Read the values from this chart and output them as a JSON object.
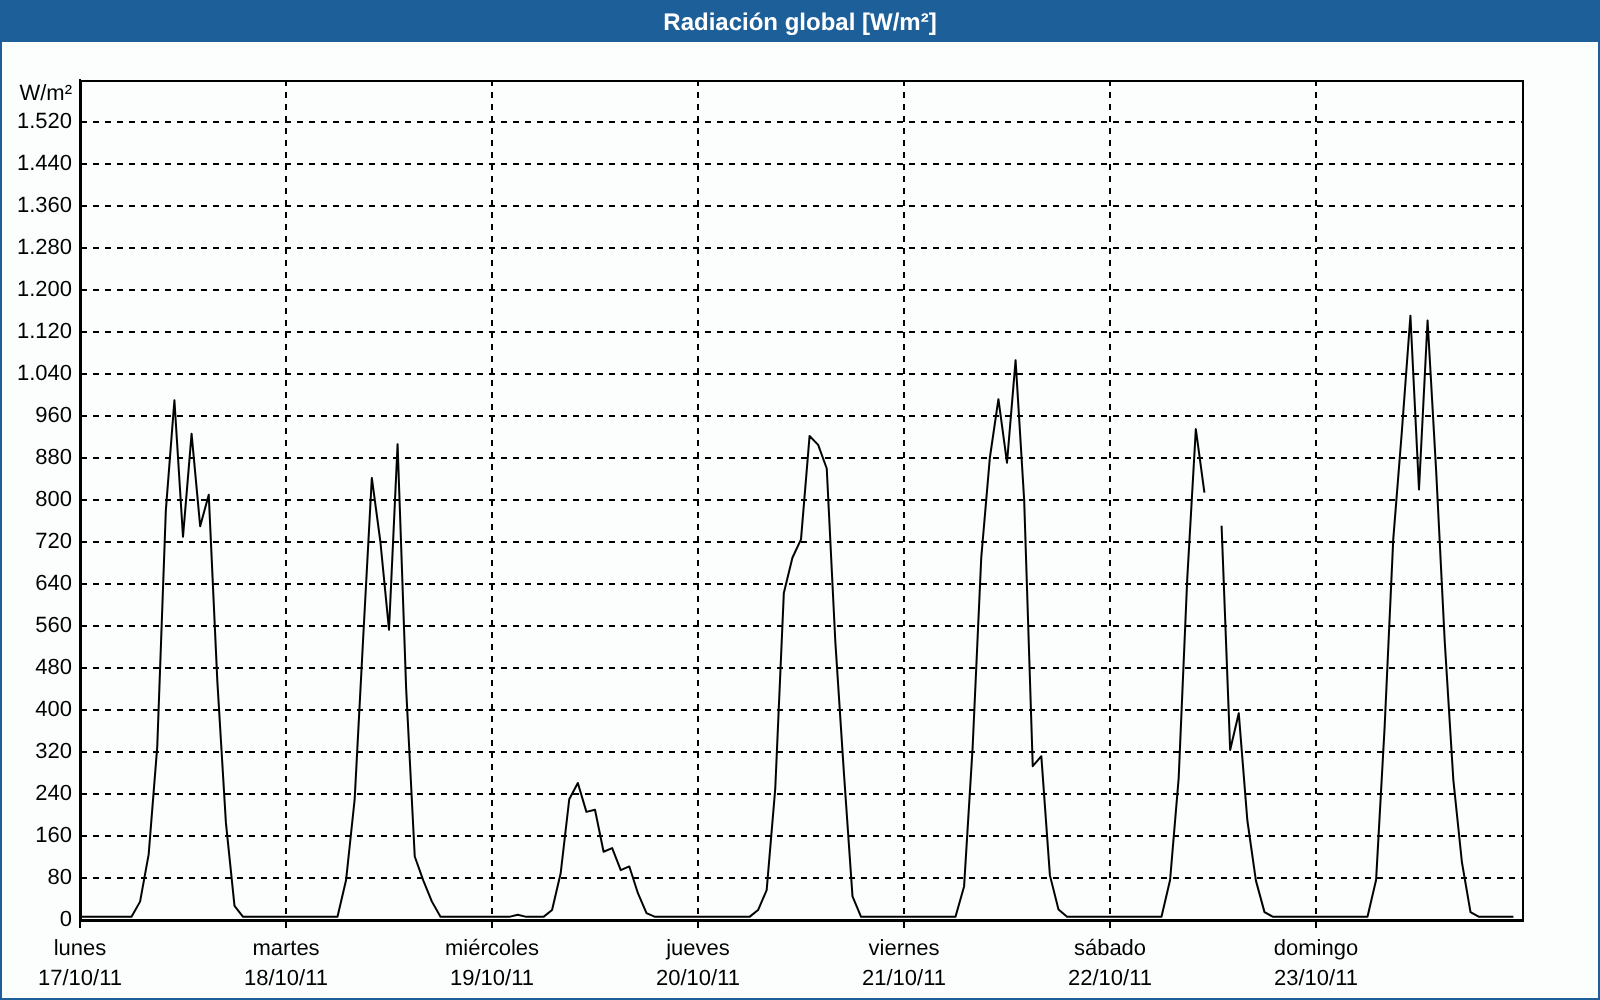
{
  "chart_data": {
    "type": "line",
    "title": "Radiación global [W/m²]",
    "ylabel": "W/m²",
    "categories": [
      "lunes\n17/10/11",
      null,
      null,
      null,
      null,
      null,
      null,
      null,
      null,
      null,
      null,
      null,
      null,
      null,
      null,
      null,
      null,
      null,
      null,
      null,
      null,
      null,
      null,
      null,
      "martes\n18/10/11",
      null,
      null,
      null,
      null,
      null,
      null,
      null,
      null,
      null,
      null,
      null,
      null,
      null,
      null,
      null,
      null,
      null,
      null,
      null,
      null,
      null,
      null,
      null,
      "miércoles\n19/10/11",
      null,
      null,
      null,
      null,
      null,
      null,
      null,
      null,
      null,
      null,
      null,
      null,
      null,
      null,
      null,
      null,
      null,
      null,
      null,
      null,
      null,
      null,
      null,
      "jueves\n20/10/11",
      null,
      null,
      null,
      null,
      null,
      null,
      null,
      null,
      null,
      null,
      null,
      null,
      null,
      null,
      null,
      null,
      null,
      null,
      null,
      null,
      null,
      null,
      null,
      "viernes\n21/10/11",
      null,
      null,
      null,
      null,
      null,
      null,
      null,
      null,
      null,
      null,
      null,
      null,
      null,
      null,
      null,
      null,
      null,
      null,
      null,
      null,
      null,
      null,
      null,
      "sábado\n22/10/11",
      null,
      null,
      null,
      null,
      null,
      null,
      null,
      null,
      null,
      null,
      null,
      null,
      null,
      null,
      null,
      null,
      null,
      null,
      null,
      null,
      null,
      null,
      null,
      "domingo\n23/10/11",
      null,
      null,
      null,
      null,
      null,
      null,
      null,
      null,
      null,
      null,
      null,
      null,
      null,
      null,
      null,
      null,
      null,
      null,
      null,
      null,
      null,
      null,
      null,
      null
    ],
    "values": [
      6,
      6,
      6,
      6,
      6,
      6,
      6,
      35,
      125,
      330,
      780,
      990,
      730,
      926,
      750,
      810,
      455,
      185,
      27,
      6,
      6,
      6,
      6,
      6,
      6,
      6,
      6,
      6,
      6,
      6,
      6,
      76,
      230,
      540,
      842,
      720,
      553,
      906,
      440,
      121,
      75,
      35,
      6,
      6,
      6,
      6,
      6,
      6,
      6,
      6,
      6,
      10,
      6,
      6,
      6,
      19,
      89,
      230,
      261,
      206,
      210,
      130,
      137,
      95,
      102,
      51,
      13,
      6,
      6,
      6,
      6,
      6,
      6,
      6,
      6,
      6,
      6,
      6,
      6,
      19,
      57,
      250,
      623,
      690,
      725,
      922,
      905,
      860,
      530,
      280,
      45,
      6,
      6,
      6,
      6,
      6,
      6,
      6,
      6,
      6,
      6,
      6,
      6,
      64,
      330,
      690,
      880,
      992,
      871,
      1066,
      800,
      293,
      312,
      85,
      20,
      6,
      6,
      6,
      6,
      6,
      6,
      6,
      6,
      6,
      6,
      6,
      6,
      76,
      270,
      650,
      935,
      814,
      null,
      751,
      324,
      394,
      190,
      75,
      15,
      6,
      6,
      6,
      6,
      6,
      6,
      6,
      6,
      6,
      6,
      6,
      6,
      76,
      369,
      725,
      930,
      1151,
      820,
      1142,
      855,
      530,
      267,
      110,
      15,
      6,
      6,
      6,
      6,
      6,
      null
    ],
    "color": "#000000",
    "ylim": [
      0,
      1600
    ],
    "yticks": [
      0,
      80,
      160,
      240,
      320,
      400,
      480,
      560,
      640,
      720,
      800,
      880,
      960,
      {
        "value": 1040,
        "label": "1.040"
      },
      {
        "value": 1120,
        "label": "1.120"
      },
      {
        "value": 1200,
        "label": "1.200"
      },
      {
        "value": 1280,
        "label": "1.280"
      },
      {
        "value": 1360,
        "label": "1.360"
      },
      {
        "value": 1440,
        "label": "1.440"
      },
      {
        "value": 1520,
        "label": "1.520"
      }
    ],
    "grid": true
  }
}
